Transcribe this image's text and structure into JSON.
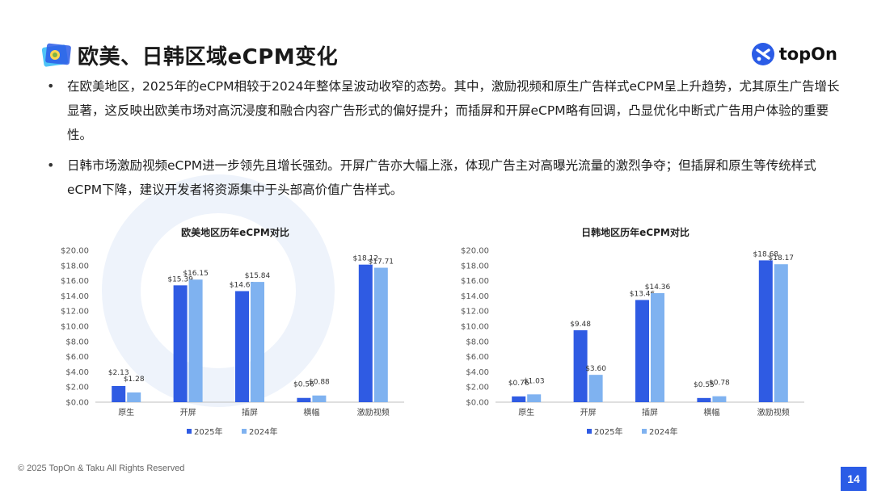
{
  "page": {
    "title": "欧美、日韩区域eCPM变化",
    "brand_name": "topOn",
    "bullets": [
      "在欧美地区，2025年的eCPM相较于2024年整体呈波动收窄的态势。其中，激励视频和原生广告样式eCPM呈上升趋势，尤其原生广告增长显著，这反映出欧美市场对高沉浸度和融合内容广告形式的偏好提升；而插屏和开屏eCPM略有回调，凸显优化中断式广告用户体验的重要性。",
      "日韩市场激励视频eCPM进一步领先且增长强劲。开屏广告亦大幅上涨，体现广告主对高曝光流量的激烈争夺；但插屏和原生等传统样式eCPM下降，建议开发者将资源集中于头部高价值广告样式。"
    ],
    "footer": "© 2025 TopOn & Taku All Rights Reserved",
    "page_number": "14",
    "colors": {
      "accent": "#2b5ce6",
      "series_2025": "#2f5be3",
      "series_2024": "#7fb2f0"
    },
    "icons": {
      "title": "image-tag-icon",
      "brand": "topon-logo-icon"
    }
  },
  "chart_data": [
    {
      "type": "bar",
      "title": "欧美地区历年eCPM对比",
      "categories": [
        "原生",
        "开屏",
        "插屏",
        "横幅",
        "激励视频"
      ],
      "series": [
        {
          "name": "2025年",
          "values": [
            2.13,
            15.39,
            14.63,
            0.56,
            18.12
          ],
          "labels": [
            "$2.13",
            "$15.39",
            "$14.63",
            "$0.56",
            "$18.12"
          ]
        },
        {
          "name": "2024年",
          "values": [
            1.28,
            16.15,
            15.84,
            0.88,
            17.71
          ],
          "labels": [
            "$1.28",
            "$16.15",
            "$15.84",
            "$0.88",
            "$17.71"
          ]
        }
      ],
      "yticks": [
        "$0.00",
        "$2.00",
        "$4.00",
        "$6.00",
        "$8.00",
        "$10.00",
        "$12.00",
        "$14.00",
        "$16.00",
        "$18.00",
        "$20.00"
      ],
      "ylim": [
        0,
        20
      ],
      "grid": false,
      "legend": "bottom"
    },
    {
      "type": "bar",
      "title": "日韩地区历年eCPM对比",
      "categories": [
        "原生",
        "开屏",
        "插屏",
        "横幅",
        "激励视频"
      ],
      "series": [
        {
          "name": "2025年",
          "values": [
            0.76,
            9.48,
            13.46,
            0.55,
            18.68
          ],
          "labels": [
            "$0.76",
            "$9.48",
            "$13.46",
            "$0.55",
            "$18.68"
          ]
        },
        {
          "name": "2024年",
          "values": [
            1.03,
            3.6,
            14.36,
            0.78,
            18.17
          ],
          "labels": [
            "$1.03",
            "$3.60",
            "$14.36",
            "$0.78",
            "$18.17"
          ]
        }
      ],
      "yticks": [
        "$0.00",
        "$2.00",
        "$4.00",
        "$6.00",
        "$8.00",
        "$10.00",
        "$12.00",
        "$14.00",
        "$16.00",
        "$18.00",
        "$20.00"
      ],
      "ylim": [
        0,
        20
      ],
      "grid": false,
      "legend": "bottom"
    }
  ]
}
